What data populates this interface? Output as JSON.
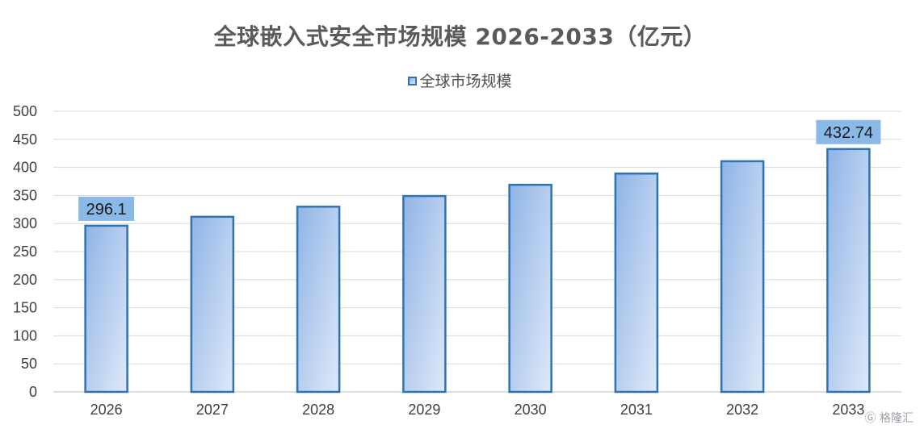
{
  "chart_data": {
    "type": "bar",
    "title": "全球嵌入式安全市场规模 2026-2033（亿元）",
    "categories": [
      "2026",
      "2027",
      "2028",
      "2029",
      "2030",
      "2031",
      "2032",
      "2033"
    ],
    "series": [
      {
        "name": "全球市场规模",
        "values": [
          296.1,
          312,
          330,
          349,
          369,
          389,
          411,
          432.74
        ]
      }
    ],
    "data_labels": [
      {
        "category": "2026",
        "text": "296.1"
      },
      {
        "category": "2033",
        "text": "432.74"
      }
    ],
    "xlabel": "",
    "ylabel": "",
    "ylim": [
      0,
      500
    ],
    "yticks": [
      0,
      50,
      100,
      150,
      200,
      250,
      300,
      350,
      400,
      450,
      500
    ],
    "grid": true,
    "legend_position": "top-center",
    "colors": {
      "bar_fill_start": "#8fb4e6",
      "bar_fill_end": "#dbe7f7",
      "bar_border": "#2e74b5",
      "data_label_bg": "#8ab9e8",
      "grid": "#d9d9d9",
      "axis_text": "#404040"
    }
  },
  "watermark": {
    "text": "格隆汇",
    "icon": "gelonghui-logo-icon"
  }
}
